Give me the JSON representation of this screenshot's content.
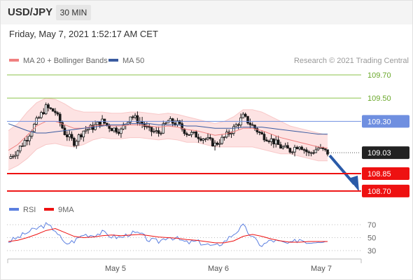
{
  "header": {
    "symbol": "USD/JPY",
    "timeframe": "30 MIN",
    "timestamp": "Friday, May 7, 2021 1:52:17 AM CET"
  },
  "legend": {
    "ma20_label": "MA 20 + Bollinger Bands",
    "ma50_label": "MA 50",
    "credit": "Research © 2021 Trading Central",
    "rsi_label": "RSI",
    "rsi_ma_label": "9MA"
  },
  "colors": {
    "ma20": "#f08080",
    "ma50": "#3a5ba0",
    "band_fill": "#fde3e3",
    "candles": "#1a1a1a",
    "resistance": "#8bc34a",
    "pivot": "#6f8fe0",
    "support": "#ee1111",
    "last_price": "#222222",
    "arrow": "#2a5aa8",
    "rsi": "#5b7fe0",
    "rsi_ma": "#ee1111"
  },
  "chart_data": [
    {
      "type": "candlestick",
      "title": "USD/JPY",
      "x_tick_labels": [
        "May 5",
        "May 6",
        "May 7"
      ],
      "ylim": [
        108.62,
        109.84
      ],
      "price_levels": [
        {
          "label": "109.70",
          "value": 109.7,
          "role": "resistance"
        },
        {
          "label": "109.50",
          "value": 109.5,
          "role": "resistance"
        },
        {
          "label": "109.30",
          "value": 109.3,
          "role": "pivot"
        },
        {
          "label": "109.03",
          "value": 109.03,
          "role": "last"
        },
        {
          "label": "108.85",
          "value": 108.85,
          "role": "support"
        },
        {
          "label": "108.70",
          "value": 108.7,
          "role": "support"
        }
      ],
      "close_series": [
        108.98,
        109.05,
        109.16,
        109.3,
        109.42,
        109.38,
        109.2,
        109.12,
        109.22,
        109.25,
        109.3,
        109.24,
        109.22,
        109.35,
        109.3,
        109.22,
        109.2,
        109.3,
        109.28,
        109.2,
        109.18,
        109.15,
        109.1,
        109.16,
        109.24,
        109.34,
        109.26,
        109.18,
        109.14,
        109.08,
        109.05,
        109.1,
        109.02,
        109.07,
        109.03
      ],
      "ma20_series": [
        109.05,
        109.1,
        109.18,
        109.26,
        109.3,
        109.3,
        109.27,
        109.24,
        109.24,
        109.26,
        109.27,
        109.26,
        109.26,
        109.27,
        109.27,
        109.26,
        109.25,
        109.26,
        109.25,
        109.23,
        109.22,
        109.2,
        109.18,
        109.19,
        109.21,
        109.24,
        109.24,
        109.22,
        109.19,
        109.16,
        109.14,
        109.12,
        109.1,
        109.08,
        109.07
      ],
      "bb_upper_series": [
        109.22,
        109.28,
        109.38,
        109.46,
        109.5,
        109.49,
        109.45,
        109.4,
        109.38,
        109.38,
        109.38,
        109.37,
        109.37,
        109.38,
        109.38,
        109.37,
        109.36,
        109.37,
        109.36,
        109.34,
        109.32,
        109.3,
        109.28,
        109.3,
        109.34,
        109.4,
        109.4,
        109.38,
        109.34,
        109.3,
        109.26,
        109.24,
        109.22,
        109.2,
        109.18
      ],
      "bb_lower_series": [
        108.88,
        108.92,
        108.98,
        109.06,
        109.1,
        109.11,
        109.09,
        109.08,
        109.1,
        109.14,
        109.16,
        109.15,
        109.15,
        109.16,
        109.16,
        109.15,
        109.14,
        109.15,
        109.14,
        109.12,
        109.12,
        109.1,
        109.08,
        109.08,
        109.08,
        109.08,
        109.08,
        109.06,
        109.04,
        109.02,
        109.02,
        109.0,
        108.98,
        108.96,
        108.96
      ],
      "ma50_series": [
        109.28,
        109.25,
        109.22,
        109.2,
        109.2,
        109.21,
        109.22,
        109.23,
        109.24,
        109.25,
        109.26,
        109.27,
        109.27,
        109.28,
        109.28,
        109.28,
        109.27,
        109.27,
        109.27,
        109.26,
        109.26,
        109.25,
        109.24,
        109.24,
        109.24,
        109.25,
        109.25,
        109.25,
        109.24,
        109.23,
        109.22,
        109.21,
        109.2,
        109.19,
        109.19
      ],
      "forecast": {
        "from": 109.03,
        "to": 108.7,
        "direction": "down"
      }
    },
    {
      "type": "line",
      "title": "RSI",
      "ylim": [
        25,
        75
      ],
      "y_ticks": [
        70,
        50,
        30
      ],
      "y_tick_labels": [
        "70",
        "50",
        "30"
      ],
      "series": [
        {
          "name": "RSI",
          "values": [
            44,
            50,
            58,
            64,
            70,
            62,
            40,
            45,
            55,
            54,
            58,
            52,
            50,
            57,
            56,
            46,
            44,
            52,
            48,
            42,
            44,
            40,
            36,
            44,
            56,
            68,
            50,
            38,
            46,
            43,
            40,
            48,
            43,
            46,
            44
          ]
        },
        {
          "name": "9MA",
          "values": [
            44,
            46,
            50,
            55,
            61,
            64,
            58,
            52,
            50,
            51,
            53,
            54,
            53,
            54,
            55,
            53,
            51,
            50,
            49,
            47,
            46,
            44,
            42,
            42,
            45,
            52,
            55,
            52,
            48,
            45,
            43,
            43,
            44,
            44,
            44
          ]
        }
      ]
    }
  ]
}
